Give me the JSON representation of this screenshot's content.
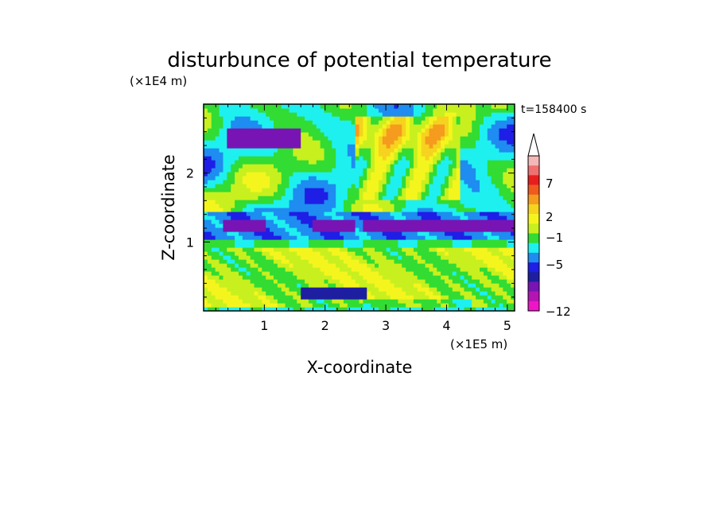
{
  "chart_data": {
    "type": "heatmap",
    "title": "disturbunce of potential temperature",
    "xlabel": "X-coordinate",
    "ylabel": "Z-coordinate",
    "x_scale_note": "(×1E5 m)",
    "y_scale_note": "(×1E4 m)",
    "time_label": "t=158400 s",
    "xlim": [
      0,
      5.12
    ],
    "ylim": [
      0,
      3.0
    ],
    "x_ticks": [
      "1",
      "2",
      "3",
      "4",
      "5"
    ],
    "y_ticks": [
      "1",
      "2"
    ],
    "colorbar": {
      "tick_labels": [
        "7",
        "2",
        "−1",
        "−5",
        "−12"
      ],
      "colors": [
        "#f5b8b8",
        "#f07070",
        "#e81e1e",
        "#f05a1e",
        "#f59b1e",
        "#f5d31e",
        "#f5f51e",
        "#c8f01e",
        "#32dc32",
        "#1ef0f0",
        "#1e8cf0",
        "#1e1ee6",
        "#1e1ea0",
        "#7814b4",
        "#b414b4",
        "#f014c8"
      ],
      "extend": "max"
    },
    "bands": [
      {
        "z_range": [
          0.0,
          0.08
        ],
        "dominant": "green",
        "value_approx": -0.5
      },
      {
        "z_range": [
          0.08,
          0.9
        ],
        "dominant": "orange/yellow",
        "value_approx": 2
      },
      {
        "z_range": [
          0.9,
          1.05
        ],
        "dominant": "green/yellow",
        "value_approx": 0
      },
      {
        "z_range": [
          1.05,
          1.4
        ],
        "dominant": "cyan with blue cores",
        "value_approx": -3
      },
      {
        "z_range": [
          1.4,
          3.0
        ],
        "dominant": "alternating orange/yellow/green/blue wave pattern",
        "value_approx": 1
      }
    ]
  },
  "colors": {
    "axis": "#000000",
    "background": "#ffffff"
  }
}
